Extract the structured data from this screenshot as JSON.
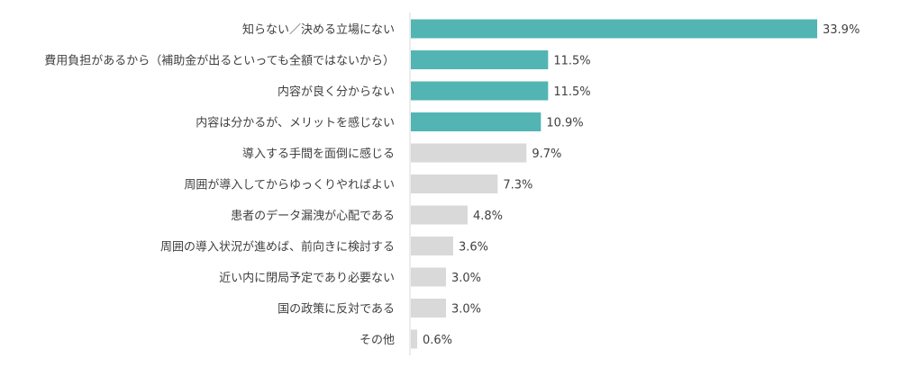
{
  "chart_data": {
    "type": "bar",
    "orientation": "horizontal",
    "categories": [
      "知らない／決める立場にない",
      "費用負担があるから（補助金が出るといっても全額ではないから）",
      "内容が良く分からない",
      "内容は分かるが、メリットを感じない",
      "導入する手間を面倒に感じる",
      "周囲が導入してからゆっくりやればよい",
      "患者のデータ漏洩が心配である",
      "周囲の導入状況が進めば、前向きに検討する",
      "近い内に閉局予定であり必要ない",
      "国の政策に反対である",
      "その他"
    ],
    "values": [
      33.9,
      11.5,
      11.5,
      10.9,
      9.7,
      7.3,
      4.8,
      3.6,
      3.0,
      3.0,
      0.6
    ],
    "value_labels": [
      "33.9%",
      "11.5%",
      "11.5%",
      "10.9%",
      "9.7%",
      "7.3%",
      "4.8%",
      "3.6%",
      "3.0%",
      "3.0%",
      "0.6%"
    ],
    "highlight_count": 4,
    "colors": {
      "highlight": "#52b5b3",
      "other": "#d9d9d9",
      "axis": "#d9d9d9"
    },
    "xlim": [
      0,
      33.9
    ],
    "grid": false,
    "title": "",
    "xlabel": "",
    "ylabel": ""
  }
}
